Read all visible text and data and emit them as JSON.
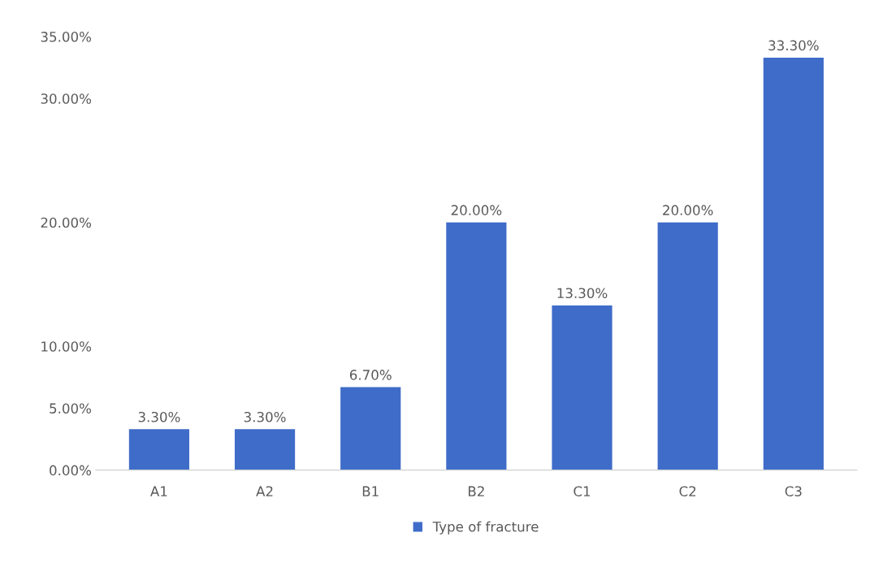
{
  "chart_data": {
    "type": "bar",
    "categories": [
      "A1",
      "A2",
      "B1",
      "B2",
      "C1",
      "C2",
      "C3"
    ],
    "series": [
      {
        "name": "Type of fracture",
        "color": "#3f6cc9",
        "values": [
          3.3,
          3.3,
          6.7,
          20.0,
          13.3,
          20.0,
          33.3
        ],
        "value_labels": [
          "3.30%",
          "3.30%",
          "6.70%",
          "20.00%",
          "13.30%",
          "20.00%",
          "33.30%"
        ]
      }
    ],
    "ylim": [
      0,
      35
    ],
    "yticks": [
      {
        "value": 0,
        "label": "0.00%"
      },
      {
        "value": 5,
        "label": "5.00%"
      },
      {
        "value": 10,
        "label": "10.00%"
      },
      {
        "value": 20,
        "label": "20.00%"
      },
      {
        "value": 30,
        "label": "30.00%"
      },
      {
        "value": 35,
        "label": "35.00%"
      }
    ],
    "grid": false,
    "legend": "bottom"
  }
}
